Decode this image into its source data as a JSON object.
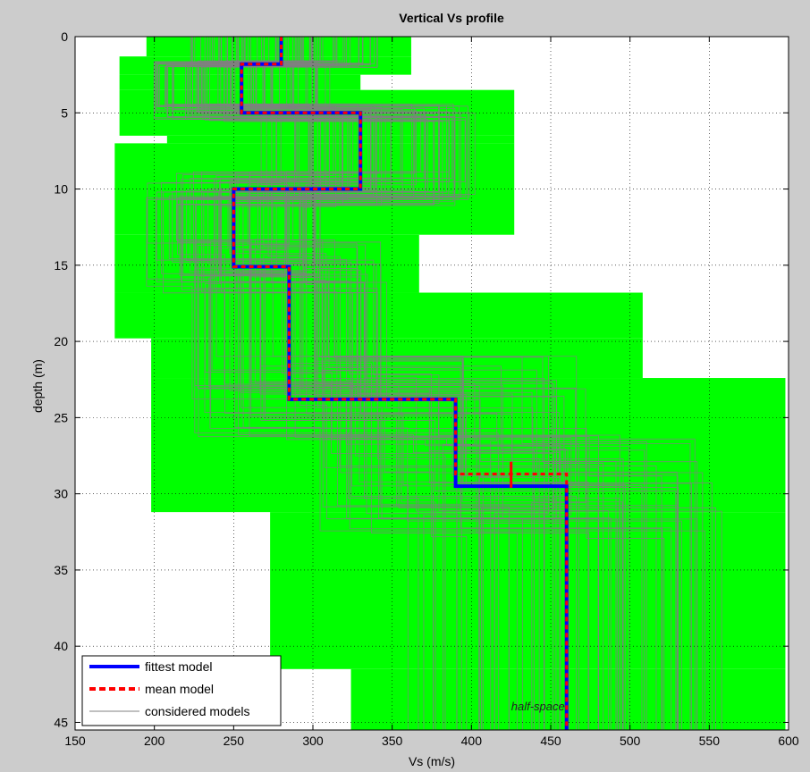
{
  "chart_data": {
    "type": "line",
    "title": "Vertical Vs profile",
    "xlabel": "Vs (m/s)",
    "ylabel": "depth (m)",
    "xlim": [
      150,
      600
    ],
    "ylim": [
      0,
      45.5
    ],
    "y_reversed": true,
    "grid": true,
    "legend_position": "bottom-left",
    "xticks": [
      150,
      200,
      250,
      300,
      350,
      400,
      450,
      500,
      550,
      600
    ],
    "yticks": [
      0,
      5,
      10,
      15,
      20,
      25,
      30,
      35,
      40,
      45
    ],
    "legend": [
      {
        "label": "fittest model",
        "color": "#0000ff",
        "style": "solid"
      },
      {
        "label": "mean model",
        "color": "#ff0000",
        "style": "dashed"
      },
      {
        "label": "considered models",
        "color": "#808080",
        "style": "thin"
      }
    ],
    "annotation": "half-space",
    "colors": {
      "range": "#00ff00",
      "fittest": "#0000ff",
      "mean": "#ff0000",
      "considered": "#808080",
      "grid": "#000000"
    },
    "search_range": [
      {
        "depth_top": 0,
        "depth_bottom": 1.3,
        "vs_min": 195,
        "vs_max": 362
      },
      {
        "depth_top": 1.3,
        "depth_bottom": 2.5,
        "vs_min": 178,
        "vs_max": 362
      },
      {
        "depth_top": 2.5,
        "depth_bottom": 3.5,
        "vs_min": 178,
        "vs_max": 330
      },
      {
        "depth_top": 3.5,
        "depth_bottom": 6.5,
        "vs_min": 178,
        "vs_max": 427
      },
      {
        "depth_top": 6.5,
        "depth_bottom": 7.0,
        "vs_min": 208,
        "vs_max": 427
      },
      {
        "depth_top": 7.0,
        "depth_bottom": 13.0,
        "vs_min": 175,
        "vs_max": 427
      },
      {
        "depth_top": 13.0,
        "depth_bottom": 16.8,
        "vs_min": 175,
        "vs_max": 367
      },
      {
        "depth_top": 16.8,
        "depth_bottom": 19.8,
        "vs_min": 175,
        "vs_max": 508
      },
      {
        "depth_top": 19.8,
        "depth_bottom": 22.4,
        "vs_min": 198,
        "vs_max": 508
      },
      {
        "depth_top": 22.4,
        "depth_bottom": 31.2,
        "vs_min": 198,
        "vs_max": 598
      },
      {
        "depth_top": 31.2,
        "depth_bottom": 41.5,
        "vs_min": 273,
        "vs_max": 598
      },
      {
        "depth_top": 41.5,
        "depth_bottom": 45.5,
        "vs_min": 324,
        "vs_max": 598
      }
    ],
    "fittest_model": {
      "vs": [
        280,
        255,
        330,
        250,
        285,
        390,
        460
      ],
      "depth_boundaries": [
        1.8,
        5.0,
        10.0,
        15.1,
        23.8,
        29.5
      ]
    },
    "mean_model": {
      "vs": [
        280,
        255,
        330,
        250,
        285,
        390,
        460
      ],
      "depth_boundaries": [
        1.8,
        5.0,
        10.0,
        15.1,
        23.8,
        28.7
      ],
      "error_bar": {
        "vs": 425,
        "depth_min": 27.9,
        "depth_max": 29.6
      }
    }
  }
}
